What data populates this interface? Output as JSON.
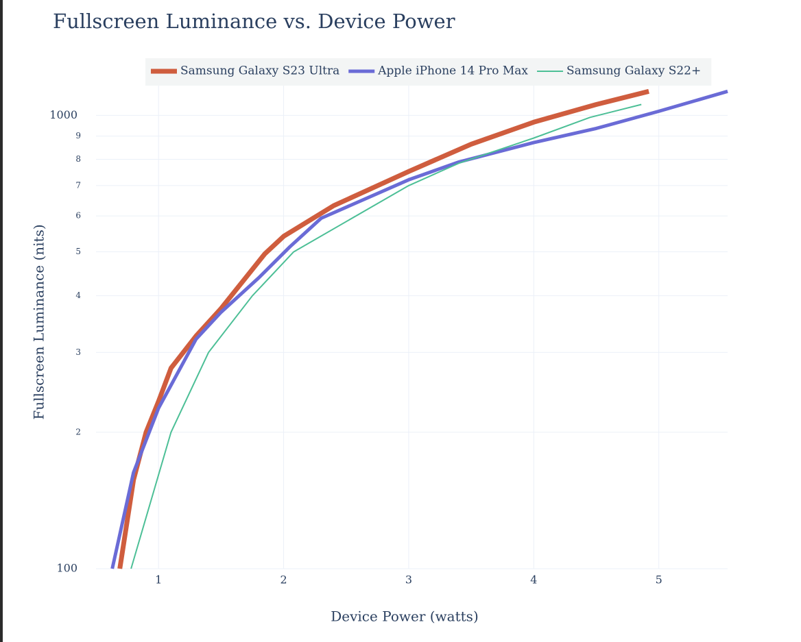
{
  "chart_data": {
    "type": "line",
    "title": "Fullscreen Luminance vs. Device Power",
    "x_label": "Device Power (watts)",
    "y_label": "Fullscreen Luminance (nits)",
    "xlim": [
      0.5,
      5.55
    ],
    "xticks": [
      1,
      2,
      3,
      4,
      5
    ],
    "ylim": [
      100,
      1200
    ],
    "log_y": true,
    "grid": true,
    "yticks": [
      100,
      {
        "value": 200,
        "label": "2"
      },
      {
        "value": 300,
        "label": "3"
      },
      {
        "value": 400,
        "label": "4"
      },
      {
        "value": 500,
        "label": "5"
      },
      {
        "value": 600,
        "label": "6"
      },
      {
        "value": 700,
        "label": "7"
      },
      {
        "value": 800,
        "label": "8"
      },
      {
        "value": 900,
        "label": "9"
      },
      1000
    ],
    "series": [
      {
        "name": "Samsung Galaxy S23 Ultra",
        "color": "#cf5d3e",
        "width": 7,
        "x": [
          0.69,
          0.8,
          0.9,
          1,
          1.1,
          1.3,
          1.5,
          1.85,
          2,
          2.4,
          3,
          3.5,
          4,
          4.5,
          4.92
        ],
        "values": [
          100,
          157,
          200,
          234,
          277,
          326,
          375,
          495,
          541,
          632,
          752,
          864,
          966,
          1057,
          1130
        ]
      },
      {
        "name": "Apple iPhone 14 Pro Max",
        "color": "#6a6bd6",
        "width": 5,
        "x": [
          0.63,
          0.8,
          1,
          1.3,
          1.5,
          1.8,
          2.05,
          2.3,
          3,
          3.4,
          4,
          4.5,
          5,
          5.55
        ],
        "values": [
          100,
          163,
          226,
          321,
          368,
          438,
          513,
          593,
          721,
          789,
          871,
          936,
          1021,
          1130
        ]
      },
      {
        "name": "Samsung Galaxy S22+",
        "color": "#4cbf96",
        "width": 2,
        "x": [
          0.78,
          1.1,
          1.4,
          1.75,
          2.08,
          3,
          3.4,
          4,
          4.45,
          4.86
        ],
        "values": [
          100,
          200,
          300,
          400,
          500,
          700,
          784,
          891,
          990,
          1057
        ]
      }
    ]
  }
}
